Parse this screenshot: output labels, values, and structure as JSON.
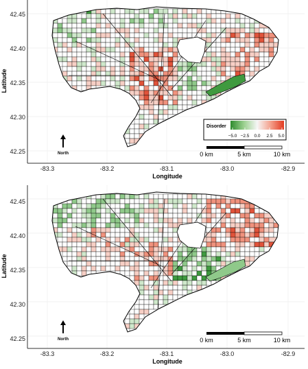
{
  "panels": [
    {
      "id": "top",
      "x_axis_label": "Longitude",
      "y_axis_label": "Latitude",
      "x_ticks": [
        "-83.3",
        "-83.2",
        "-83.1",
        "-83.0",
        "-82.9"
      ],
      "y_ticks": [
        "42.45",
        "42.40",
        "42.35",
        "42.30",
        "42.25"
      ],
      "north_label": "North",
      "scale_labels": [
        "0 km",
        "5 km",
        "10 km"
      ],
      "legend": {
        "title": "Disorder",
        "tick_labels": [
          "−5.0",
          "−2.5",
          "0.0",
          "2.5",
          "5.0"
        ],
        "colors": [
          "#2e8b2e",
          "#9bd08f",
          "#f6f6f6",
          "#f4a08c",
          "#e23a20"
        ]
      }
    },
    {
      "id": "bottom",
      "x_axis_label": "Longitude",
      "y_axis_label": "Latitude",
      "x_ticks": [
        "-83.3",
        "-83.2",
        "-83.1",
        "-83.0",
        "-82.9"
      ],
      "y_ticks": [
        "42.45",
        "42.40",
        "42.35",
        "42.30",
        "42.25"
      ],
      "north_label": "North",
      "scale_labels": [
        "0 km",
        "5 km",
        "10 km"
      ]
    }
  ],
  "colors": {
    "green_dark": "#3f9a3f",
    "green_mid": "#8fc98a",
    "green_light": "#cfe8cb",
    "neutral": "#ffffff",
    "red_light": "#f7cfc5",
    "red_mid": "#f0927d",
    "red_dark": "#e0533a"
  }
}
